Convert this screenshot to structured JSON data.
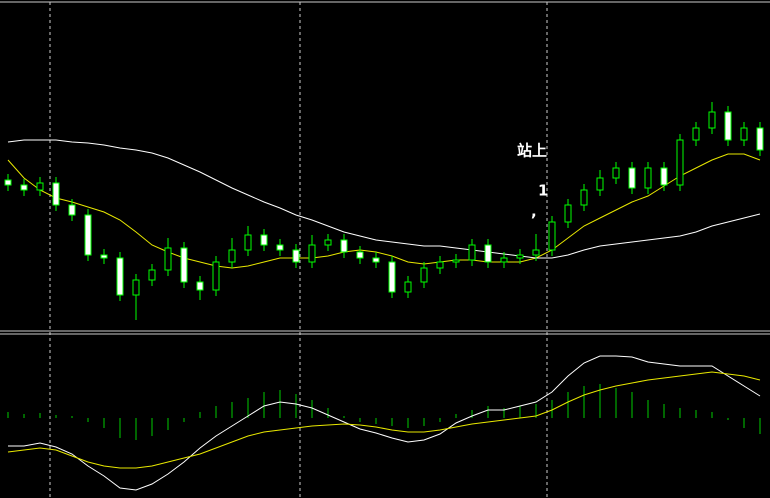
{
  "chart_data": [
    {
      "type": "candlestick",
      "ylim": [
        0,
        330
      ],
      "up_color": "#00ff00",
      "down_fill": "#ffffff",
      "open": [
        150,
        145,
        140,
        147,
        125,
        115,
        75,
        72,
        35,
        50,
        60,
        82,
        48,
        40,
        68,
        80,
        95,
        85,
        80,
        68,
        85,
        90,
        78,
        72,
        68,
        38,
        48,
        62,
        68,
        70,
        85,
        68,
        72,
        75,
        80,
        108,
        125,
        140,
        152,
        162,
        142,
        162,
        145,
        190,
        202,
        218,
        190,
        202
      ],
      "high": [
        156,
        151,
        153,
        153,
        131,
        121,
        81,
        78,
        56,
        66,
        92,
        88,
        54,
        74,
        92,
        104,
        101,
        91,
        86,
        95,
        96,
        96,
        84,
        78,
        74,
        54,
        68,
        74,
        76,
        91,
        91,
        78,
        81,
        96,
        114,
        131,
        146,
        160,
        168,
        168,
        168,
        168,
        196,
        208,
        228,
        224,
        208,
        208
      ],
      "low": [
        139,
        134,
        134,
        119,
        109,
        69,
        66,
        29,
        10,
        44,
        54,
        42,
        30,
        34,
        62,
        74,
        79,
        74,
        62,
        62,
        79,
        72,
        66,
        62,
        32,
        32,
        42,
        56,
        62,
        64,
        62,
        62,
        66,
        69,
        74,
        102,
        119,
        134,
        146,
        136,
        136,
        139,
        139,
        184,
        196,
        184,
        184,
        174
      ],
      "close": [
        145,
        140,
        147,
        125,
        115,
        75,
        72,
        35,
        50,
        60,
        82,
        48,
        40,
        68,
        80,
        95,
        85,
        80,
        68,
        85,
        90,
        78,
        72,
        68,
        38,
        48,
        62,
        68,
        70,
        85,
        68,
        72,
        75,
        80,
        108,
        125,
        140,
        152,
        162,
        142,
        162,
        145,
        190,
        202,
        218,
        190,
        202,
        180
      ],
      "series": [
        {
          "color": "#e8e800",
          "values": [
            170,
            152,
            140,
            132,
            128,
            123,
            118,
            110,
            98,
            85,
            78,
            72,
            68,
            64,
            62,
            64,
            68,
            72,
            72,
            72,
            74,
            78,
            80,
            78,
            74,
            68,
            66,
            68,
            70,
            70,
            68,
            68,
            68,
            72,
            80,
            92,
            104,
            112,
            120,
            128,
            134,
            144,
            154,
            162,
            170,
            176,
            176,
            170
          ]
        },
        {
          "color": "#ffffff",
          "values": [
            188,
            190,
            190,
            190,
            188,
            187,
            185,
            182,
            180,
            177,
            172,
            165,
            158,
            150,
            142,
            135,
            128,
            122,
            115,
            110,
            104,
            98,
            94,
            90,
            88,
            86,
            84,
            84,
            82,
            80,
            78,
            76,
            74,
            72,
            72,
            75,
            80,
            84,
            86,
            88,
            90,
            92,
            94,
            98,
            104,
            108,
            112,
            116
          ]
        }
      ],
      "annotations": [
        "站上",
        "1",
        ","
      ]
    },
    {
      "type": "macd",
      "ylim": [
        -79,
        83
      ],
      "histogram_color": "#00cc00",
      "histogram": [
        6,
        4,
        5,
        3,
        2,
        -4,
        -10,
        -20,
        -22,
        -18,
        -12,
        -4,
        6,
        12,
        16,
        20,
        26,
        28,
        24,
        18,
        10,
        2,
        -4,
        -6,
        -8,
        -10,
        -8,
        -4,
        4,
        8,
        12,
        10,
        12,
        14,
        18,
        26,
        32,
        34,
        30,
        26,
        18,
        14,
        10,
        8,
        6,
        -2,
        -10,
        -16
      ],
      "series": [
        {
          "color": "#ffffff",
          "values": [
            -28,
            -28,
            -25,
            -29,
            -36,
            -48,
            -58,
            -70,
            -72,
            -66,
            -56,
            -44,
            -30,
            -18,
            -8,
            2,
            12,
            16,
            14,
            10,
            3,
            -4,
            -11,
            -15,
            -20,
            -24,
            -22,
            -16,
            -5,
            2,
            8,
            8,
            12,
            16,
            26,
            42,
            55,
            62,
            62,
            61,
            56,
            54,
            52,
            52,
            52,
            42,
            32,
            22
          ]
        },
        {
          "color": "#e8e800",
          "values": [
            -34,
            -32,
            -30,
            -32,
            -38,
            -44,
            -48,
            -50,
            -50,
            -48,
            -44,
            -40,
            -36,
            -30,
            -24,
            -18,
            -14,
            -12,
            -10,
            -8,
            -7,
            -6,
            -7,
            -9,
            -12,
            -14,
            -14,
            -12,
            -9,
            -6,
            -4,
            -2,
            0,
            2,
            8,
            16,
            23,
            28,
            32,
            35,
            38,
            40,
            42,
            44,
            46,
            44,
            42,
            38
          ]
        }
      ]
    }
  ]
}
